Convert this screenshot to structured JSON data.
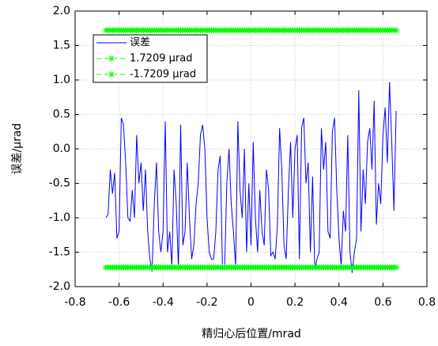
{
  "chart_data": {
    "type": "line",
    "xlabel": "精归心后位置/mrad",
    "ylabel": "误差/μrad",
    "xlim": [
      -0.8,
      0.8
    ],
    "xticks": [
      -0.8,
      -0.6,
      -0.4,
      -0.2,
      0,
      0.2,
      0.4,
      0.6,
      0.8
    ],
    "ylim": [
      -2,
      2
    ],
    "yticks": [
      {
        "value": 2,
        "label": "2.0"
      },
      1.5,
      {
        "value": 1,
        "label": "1.0"
      },
      0.5,
      {
        "value": 0,
        "label": "0.0"
      },
      -0.5,
      {
        "value": -1,
        "label": "-1.0"
      },
      -1.5,
      {
        "value": -2,
        "label": "-2.0"
      }
    ],
    "grid": true,
    "legend": "upper left",
    "x": [
      -0.66,
      -0.65,
      -0.64,
      -0.63,
      -0.62,
      -0.61,
      -0.6,
      -0.59,
      -0.58,
      -0.57,
      -0.56,
      -0.55,
      -0.54,
      -0.53,
      -0.52,
      -0.51,
      -0.5,
      -0.49,
      -0.48,
      -0.47,
      -0.46,
      -0.45,
      -0.44,
      -0.43,
      -0.42,
      -0.41,
      -0.4,
      -0.39,
      -0.38,
      -0.37,
      -0.36,
      -0.35,
      -0.34,
      -0.33,
      -0.32,
      -0.31,
      -0.3,
      -0.29,
      -0.28,
      -0.27,
      -0.26,
      -0.25,
      -0.24,
      -0.23,
      -0.22,
      -0.21,
      -0.2,
      -0.19,
      -0.18,
      -0.17,
      -0.16,
      -0.15,
      -0.14,
      -0.13,
      -0.12,
      -0.11,
      -0.1,
      -0.09,
      -0.08,
      -0.07,
      -0.06,
      -0.05,
      -0.04,
      -0.03,
      -0.02,
      -0.01,
      0,
      0.01,
      0.02,
      0.03,
      0.04,
      0.05,
      0.06,
      0.07,
      0.08,
      0.09,
      0.1,
      0.11,
      0.12,
      0.13,
      0.14,
      0.15,
      0.16,
      0.17,
      0.18,
      0.19,
      0.2,
      0.21,
      0.22,
      0.23,
      0.24,
      0.25,
      0.26,
      0.27,
      0.28,
      0.29,
      0.3,
      0.31,
      0.32,
      0.33,
      0.34,
      0.35,
      0.36,
      0.37,
      0.38,
      0.39,
      0.4,
      0.41,
      0.42,
      0.43,
      0.44,
      0.45,
      0.46,
      0.47,
      0.48,
      0.49,
      0.5,
      0.51,
      0.52,
      0.53,
      0.54,
      0.55,
      0.56,
      0.57,
      0.58,
      0.59,
      0.6,
      0.61,
      0.62,
      0.63,
      0.64,
      0.65,
      0.66
    ],
    "series": [
      {
        "name": "误差",
        "color": "#0000ff",
        "linestyle": "solid",
        "marker": "none",
        "values": [
          -1.0,
          -0.95,
          -0.3,
          -0.65,
          -0.35,
          -1.3,
          -1.2,
          0.45,
          0.35,
          -0.2,
          -1.0,
          -1.05,
          -0.6,
          -1.0,
          0.2,
          -0.5,
          -0.2,
          -0.9,
          -0.3,
          -1.2,
          -1.6,
          -1.78,
          -0.8,
          -0.2,
          -1.2,
          -1.5,
          -1.2,
          0.4,
          -1.5,
          -1.2,
          -1.7,
          -0.3,
          -0.8,
          -1.75,
          0.35,
          -1.4,
          -1.2,
          -0.2,
          -1.0,
          -1.6,
          -1.4,
          -0.8,
          -0.5,
          0.2,
          0.35,
          0.0,
          -1.0,
          -1.5,
          -1.6,
          -1.6,
          -1.2,
          -0.3,
          -0.1,
          -1.7,
          -1.72,
          -0.5,
          0.0,
          -0.8,
          -1.2,
          -1.7,
          0.4,
          -0.6,
          -1.0,
          0.0,
          -1.5,
          -0.5,
          -1.4,
          0.1,
          -1.0,
          -1.5,
          -0.6,
          -1.2,
          -1.4,
          -0.3,
          -0.6,
          -1.55,
          -1.5,
          -1.6,
          -1.1,
          0.3,
          -0.3,
          -1.4,
          -1.6,
          -0.6,
          0.1,
          -1.0,
          0.0,
          0.2,
          -1.6,
          0.3,
          0.45,
          -0.5,
          -0.2,
          -1.5,
          -0.4,
          -1.75,
          -1.6,
          -1.5,
          0.3,
          -0.3,
          0.1,
          -1.2,
          -1.3,
          0.25,
          0.45,
          -0.6,
          -1.3,
          -1.7,
          -0.9,
          -1.2,
          0.2,
          -1.5,
          -1.8,
          -1.5,
          -1.3,
          0.85,
          -1.2,
          -0.3,
          -0.8,
          0.1,
          0.3,
          -0.3,
          0.7,
          -1.1,
          -0.5,
          -0.8,
          0.2,
          0.6,
          -0.2,
          0.97,
          0.1,
          -0.9,
          0.55
        ]
      },
      {
        "name": "1.7209 μrad",
        "color": "#00ff00",
        "linestyle": "dashed",
        "marker": "*",
        "values": [
          1.7209,
          1.7209,
          1.7209,
          1.7209,
          1.7209,
          1.7209,
          1.7209,
          1.7209,
          1.7209,
          1.7209,
          1.7209,
          1.7209,
          1.7209,
          1.7209,
          1.7209,
          1.7209,
          1.7209,
          1.7209,
          1.7209,
          1.7209,
          1.7209,
          1.7209,
          1.7209,
          1.7209,
          1.7209,
          1.7209,
          1.7209,
          1.7209,
          1.7209,
          1.7209,
          1.7209,
          1.7209,
          1.7209,
          1.7209,
          1.7209,
          1.7209,
          1.7209,
          1.7209,
          1.7209,
          1.7209,
          1.7209,
          1.7209,
          1.7209,
          1.7209,
          1.7209,
          1.7209,
          1.7209,
          1.7209,
          1.7209,
          1.7209,
          1.7209,
          1.7209,
          1.7209,
          1.7209,
          1.7209,
          1.7209,
          1.7209,
          1.7209,
          1.7209,
          1.7209,
          1.7209,
          1.7209,
          1.7209,
          1.7209,
          1.7209,
          1.7209,
          1.7209,
          1.7209,
          1.7209,
          1.7209,
          1.7209,
          1.7209,
          1.7209,
          1.7209,
          1.7209,
          1.7209,
          1.7209,
          1.7209,
          1.7209,
          1.7209,
          1.7209,
          1.7209,
          1.7209,
          1.7209,
          1.7209,
          1.7209,
          1.7209,
          1.7209,
          1.7209,
          1.7209,
          1.7209,
          1.7209,
          1.7209,
          1.7209,
          1.7209,
          1.7209,
          1.7209,
          1.7209,
          1.7209,
          1.7209,
          1.7209,
          1.7209,
          1.7209,
          1.7209,
          1.7209,
          1.7209,
          1.7209,
          1.7209,
          1.7209,
          1.7209,
          1.7209,
          1.7209,
          1.7209,
          1.7209,
          1.7209,
          1.7209,
          1.7209,
          1.7209,
          1.7209,
          1.7209,
          1.7209,
          1.7209,
          1.7209,
          1.7209,
          1.7209,
          1.7209,
          1.7209,
          1.7209,
          1.7209,
          1.7209,
          1.7209,
          1.7209,
          1.7209
        ]
      },
      {
        "name": "-1.7209 μrad",
        "color": "#00ff00",
        "linestyle": "dashed",
        "marker": "*",
        "values": [
          -1.7209,
          -1.7209,
          -1.7209,
          -1.7209,
          -1.7209,
          -1.7209,
          -1.7209,
          -1.7209,
          -1.7209,
          -1.7209,
          -1.7209,
          -1.7209,
          -1.7209,
          -1.7209,
          -1.7209,
          -1.7209,
          -1.7209,
          -1.7209,
          -1.7209,
          -1.7209,
          -1.7209,
          -1.7209,
          -1.7209,
          -1.7209,
          -1.7209,
          -1.7209,
          -1.7209,
          -1.7209,
          -1.7209,
          -1.7209,
          -1.7209,
          -1.7209,
          -1.7209,
          -1.7209,
          -1.7209,
          -1.7209,
          -1.7209,
          -1.7209,
          -1.7209,
          -1.7209,
          -1.7209,
          -1.7209,
          -1.7209,
          -1.7209,
          -1.7209,
          -1.7209,
          -1.7209,
          -1.7209,
          -1.7209,
          -1.7209,
          -1.7209,
          -1.7209,
          -1.7209,
          -1.7209,
          -1.7209,
          -1.7209,
          -1.7209,
          -1.7209,
          -1.7209,
          -1.7209,
          -1.7209,
          -1.7209,
          -1.7209,
          -1.7209,
          -1.7209,
          -1.7209,
          -1.7209,
          -1.7209,
          -1.7209,
          -1.7209,
          -1.7209,
          -1.7209,
          -1.7209,
          -1.7209,
          -1.7209,
          -1.7209,
          -1.7209,
          -1.7209,
          -1.7209,
          -1.7209,
          -1.7209,
          -1.7209,
          -1.7209,
          -1.7209,
          -1.7209,
          -1.7209,
          -1.7209,
          -1.7209,
          -1.7209,
          -1.7209,
          -1.7209,
          -1.7209,
          -1.7209,
          -1.7209,
          -1.7209,
          -1.7209,
          -1.7209,
          -1.7209,
          -1.7209,
          -1.7209,
          -1.7209,
          -1.7209,
          -1.7209,
          -1.7209,
          -1.7209,
          -1.7209,
          -1.7209,
          -1.7209,
          -1.7209,
          -1.7209,
          -1.7209,
          -1.7209,
          -1.7209,
          -1.7209,
          -1.7209,
          -1.7209,
          -1.7209,
          -1.7209,
          -1.7209,
          -1.7209,
          -1.7209,
          -1.7209,
          -1.7209,
          -1.7209,
          -1.7209,
          -1.7209,
          -1.7209,
          -1.7209,
          -1.7209,
          -1.7209,
          -1.7209,
          -1.7209,
          -1.7209
        ]
      }
    ]
  }
}
